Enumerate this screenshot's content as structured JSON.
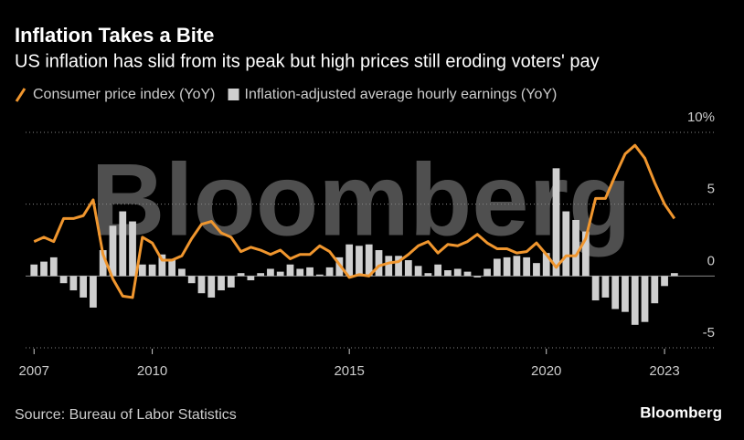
{
  "chart_data": {
    "type": "bar-line",
    "title": "Inflation Takes a Bite",
    "subtitle": "US inflation has slid from its peak but high prices still eroding voters' pay",
    "source": "Source: Bureau of Labor Statistics",
    "logo": "Bloomberg",
    "watermark": "Bloomberg",
    "x": [
      2007,
      2007.25,
      2007.5,
      2007.75,
      2008,
      2008.25,
      2008.5,
      2008.75,
      2009,
      2009.25,
      2009.5,
      2009.75,
      2010,
      2010.25,
      2010.5,
      2010.75,
      2011,
      2011.25,
      2011.5,
      2011.75,
      2012,
      2012.25,
      2012.5,
      2012.75,
      2013,
      2013.25,
      2013.5,
      2013.75,
      2014,
      2014.25,
      2014.5,
      2014.75,
      2015,
      2015.25,
      2015.5,
      2015.75,
      2016,
      2016.25,
      2016.5,
      2016.75,
      2017,
      2017.25,
      2017.5,
      2017.75,
      2018,
      2018.25,
      2018.5,
      2018.75,
      2019,
      2019.25,
      2019.5,
      2019.75,
      2020,
      2020.25,
      2020.5,
      2020.75,
      2021,
      2021.25,
      2021.5,
      2021.75,
      2022,
      2022.25,
      2022.5,
      2022.75,
      2023,
      2023.25
    ],
    "series": [
      {
        "name": "Inflation-adjusted average hourly earnings (YoY)",
        "kind": "bar",
        "color": "#cfcfcf",
        "values": [
          0.8,
          1.0,
          1.3,
          -0.5,
          -1.0,
          -1.5,
          -2.2,
          1.8,
          3.5,
          4.5,
          3.8,
          0.8,
          0.8,
          1.5,
          1.2,
          0.5,
          -0.5,
          -1.2,
          -1.5,
          -1.0,
          -0.8,
          0.2,
          -0.3,
          0.2,
          0.5,
          0.3,
          0.8,
          0.5,
          0.6,
          0.1,
          0.6,
          1.3,
          2.2,
          2.1,
          2.2,
          1.8,
          1.4,
          1.4,
          1.1,
          0.7,
          0.2,
          0.8,
          0.4,
          0.5,
          0.3,
          -0.1,
          0.5,
          1.2,
          1.3,
          1.4,
          1.3,
          0.9,
          1.6,
          7.5,
          4.5,
          3.9,
          3.1,
          -1.7,
          -1.5,
          -2.3,
          -2.5,
          -3.4,
          -3.2,
          -1.9,
          -0.7,
          0.2
        ]
      },
      {
        "name": "Consumer price index (YoY)",
        "kind": "line",
        "color": "#f0962e",
        "values": [
          2.4,
          2.7,
          2.4,
          4.0,
          4.0,
          4.2,
          5.3,
          1.5,
          -0.2,
          -1.4,
          -1.5,
          2.7,
          2.3,
          1.1,
          1.1,
          1.4,
          2.6,
          3.6,
          3.8,
          3.0,
          2.7,
          1.7,
          2.0,
          1.8,
          1.5,
          1.8,
          1.2,
          1.5,
          1.5,
          2.1,
          1.7,
          0.8,
          -0.1,
          0.1,
          0.0,
          0.7,
          0.9,
          1.0,
          1.5,
          2.1,
          2.4,
          1.6,
          2.2,
          2.1,
          2.4,
          2.9,
          2.3,
          1.9,
          1.9,
          1.6,
          1.7,
          2.3,
          1.5,
          0.6,
          1.4,
          1.4,
          2.6,
          5.4,
          5.4,
          7.0,
          8.5,
          9.1,
          8.2,
          6.5,
          5.0,
          4.0
        ]
      }
    ],
    "xlim": [
      2006.6,
      2023.3
    ],
    "xticks": [
      2007,
      2010,
      2015,
      2020,
      2023
    ],
    "ylim": [
      -5,
      10
    ],
    "yticks": [
      -5,
      0,
      5,
      {
        "value": 10,
        "label": "10%"
      }
    ],
    "grid": true
  }
}
